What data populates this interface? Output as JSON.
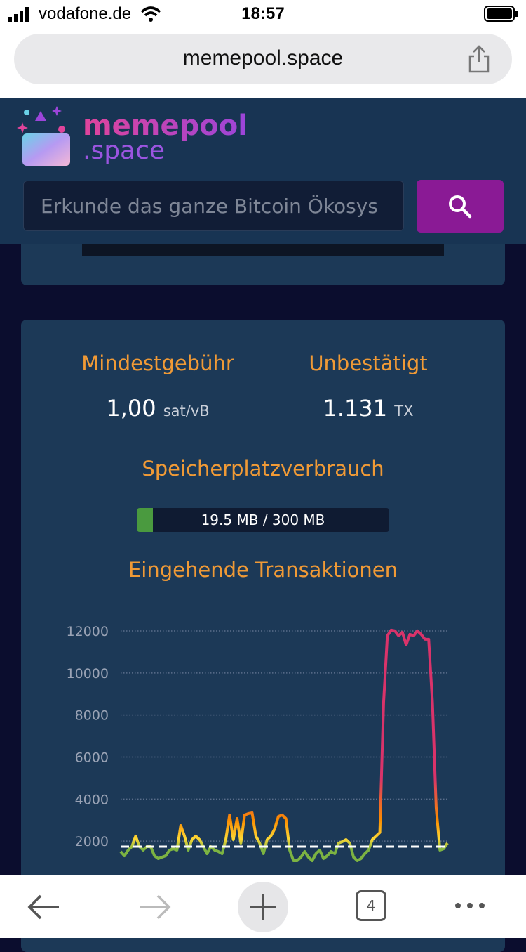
{
  "status_bar": {
    "carrier": "vodafone.de",
    "time": "18:57"
  },
  "browser": {
    "url": "memepool.space",
    "tab_count": "4"
  },
  "header": {
    "logo_top": "memepool",
    "logo_bottom": ".space",
    "search_placeholder": "Erkunde das ganze Bitcoin Ökosys"
  },
  "stats": {
    "min_fee_label": "Mindestgebühr",
    "min_fee_value": "1,00",
    "min_fee_unit": "sat/vB",
    "unconfirmed_label": "Unbestätigt",
    "unconfirmed_value": "1.131",
    "unconfirmed_unit": "TX",
    "memory_label": "Speicherplatzverbrauch",
    "memory_text": "19.5 MB / 300 MB",
    "usage": {
      "used": 19.5,
      "total": 300
    }
  },
  "chart_data": {
    "type": "line",
    "title": "Eingehende Transaktionen",
    "values": [
      1505,
      1304,
      1572,
      1739,
      2240,
      1739,
      1572,
      1739,
      1739,
      1304,
      1170,
      1237,
      1304,
      1572,
      1639,
      1572,
      2742,
      2240,
      1572,
      2073,
      2240,
      2073,
      1739,
      1404,
      1739,
      1572,
      1505,
      1404,
      2073,
      3244,
      2073,
      3076,
      1906,
      3244,
      3311,
      3344,
      2240,
      1906,
      1404,
      2073,
      2240,
      2575,
      3177,
      3244,
      3076,
      1572,
      1070,
      1070,
      1237,
      1505,
      1237,
      1070,
      1404,
      1572,
      1170,
      1304,
      1505,
      1404,
      1906,
      1973,
      2073,
      1906,
      1237,
      1070,
      1170,
      1404,
      1572,
      2073,
      2240,
      2408,
      8594,
      11771,
      12038,
      12005,
      11771,
      11938,
      11336,
      11838,
      11771,
      12005,
      11838,
      11604,
      11604,
      8594,
      3578,
      1572,
      1639,
      1906
    ],
    "color_stops": [
      {
        "value": 1600,
        "color": "#7cb342"
      },
      {
        "value": 2100,
        "color": "#fdd835"
      },
      {
        "value": 3000,
        "color": "#fb8c00"
      },
      {
        "value": 5000,
        "color": "#d9336a"
      }
    ],
    "threshold": 1740,
    "ylim": [
      0,
      12000
    ],
    "yticks": [
      2000,
      4000,
      6000,
      8000,
      10000,
      12000
    ],
    "grid": true
  }
}
